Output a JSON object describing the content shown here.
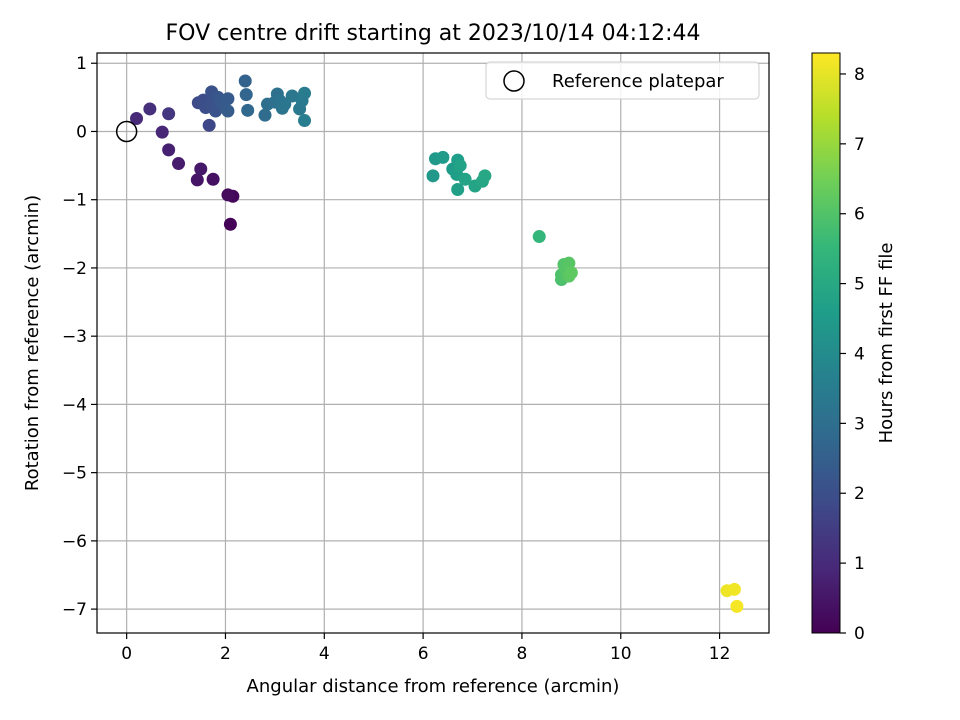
{
  "chart_data": {
    "type": "scatter",
    "title": "FOV centre drift starting at 2023/10/14 04:12:44",
    "xlabel": "Angular distance from reference (arcmin)",
    "ylabel": "Rotation from reference (arcmin)",
    "xlim": [
      -0.6,
      13.0
    ],
    "ylim": [
      -7.35,
      1.15
    ],
    "xticks": [
      "0",
      "2",
      "4",
      "6",
      "8",
      "10",
      "12"
    ],
    "xtick_values": [
      0,
      2,
      4,
      6,
      8,
      10,
      12
    ],
    "yticks": [
      "1",
      "0",
      "−1",
      "−2",
      "−3",
      "−4",
      "−5",
      "−6",
      "−7"
    ],
    "ytick_values": [
      1,
      0,
      -1,
      -2,
      -3,
      -4,
      -5,
      -6,
      -7
    ],
    "grid": true,
    "colormap": "viridis",
    "colormap_stops": [
      "#440154",
      "#482878",
      "#3e4a89",
      "#31688e",
      "#26828e",
      "#1f9e89",
      "#35b779",
      "#6ece58",
      "#b5de2b",
      "#fde725"
    ],
    "colorbar": {
      "label": "Hours from first FF file",
      "range": [
        0,
        8.3
      ],
      "ticks": [
        "0",
        "1",
        "2",
        "3",
        "4",
        "5",
        "6",
        "7",
        "8"
      ],
      "tick_values": [
        0,
        1,
        2,
        3,
        4,
        5,
        6,
        7,
        8
      ]
    },
    "legend": {
      "position": "top-right",
      "label": "Reference platepar"
    },
    "reference": {
      "x": 0,
      "y": 0
    },
    "points": [
      {
        "x": 2.1,
        "y": -1.36,
        "h": 0.05
      },
      {
        "x": 2.15,
        "y": -0.95,
        "h": 0.15
      },
      {
        "x": 2.05,
        "y": -0.93,
        "h": 0.25
      },
      {
        "x": 1.75,
        "y": -0.7,
        "h": 0.35
      },
      {
        "x": 1.43,
        "y": -0.71,
        "h": 0.45
      },
      {
        "x": 1.5,
        "y": -0.55,
        "h": 0.55
      },
      {
        "x": 1.05,
        "y": -0.47,
        "h": 0.65
      },
      {
        "x": 0.85,
        "y": -0.27,
        "h": 0.75
      },
      {
        "x": 0.72,
        "y": -0.01,
        "h": 0.9
      },
      {
        "x": 0.2,
        "y": 0.19,
        "h": 1.0
      },
      {
        "x": 0.47,
        "y": 0.33,
        "h": 1.15
      },
      {
        "x": 0.85,
        "y": 0.26,
        "h": 1.3
      },
      {
        "x": 1.67,
        "y": 0.09,
        "h": 1.8
      },
      {
        "x": 1.45,
        "y": 0.42,
        "h": 1.9
      },
      {
        "x": 1.55,
        "y": 0.46,
        "h": 1.95
      },
      {
        "x": 1.6,
        "y": 0.35,
        "h": 2.0
      },
      {
        "x": 1.7,
        "y": 0.4,
        "h": 2.05
      },
      {
        "x": 1.72,
        "y": 0.58,
        "h": 2.1
      },
      {
        "x": 1.8,
        "y": 0.3,
        "h": 2.15
      },
      {
        "x": 1.85,
        "y": 0.5,
        "h": 2.2
      },
      {
        "x": 1.9,
        "y": 0.45,
        "h": 2.25
      },
      {
        "x": 1.95,
        "y": 0.38,
        "h": 2.3
      },
      {
        "x": 2.05,
        "y": 0.48,
        "h": 2.35
      },
      {
        "x": 2.05,
        "y": 0.3,
        "h": 2.4
      },
      {
        "x": 2.4,
        "y": 0.74,
        "h": 2.6
      },
      {
        "x": 2.42,
        "y": 0.54,
        "h": 2.7
      },
      {
        "x": 2.45,
        "y": 0.31,
        "h": 2.8
      },
      {
        "x": 2.8,
        "y": 0.24,
        "h": 2.9
      },
      {
        "x": 2.85,
        "y": 0.4,
        "h": 3.0
      },
      {
        "x": 3.0,
        "y": 0.43,
        "h": 3.05
      },
      {
        "x": 3.05,
        "y": 0.55,
        "h": 3.1
      },
      {
        "x": 3.1,
        "y": 0.45,
        "h": 3.15
      },
      {
        "x": 3.15,
        "y": 0.34,
        "h": 3.2
      },
      {
        "x": 3.2,
        "y": 0.4,
        "h": 3.25
      },
      {
        "x": 3.35,
        "y": 0.52,
        "h": 3.3
      },
      {
        "x": 3.5,
        "y": 0.33,
        "h": 3.35
      },
      {
        "x": 3.55,
        "y": 0.45,
        "h": 3.4
      },
      {
        "x": 3.6,
        "y": 0.56,
        "h": 3.45
      },
      {
        "x": 3.6,
        "y": 0.16,
        "h": 3.5
      },
      {
        "x": 6.2,
        "y": -0.65,
        "h": 4.4
      },
      {
        "x": 6.25,
        "y": -0.4,
        "h": 4.45
      },
      {
        "x": 6.4,
        "y": -0.38,
        "h": 4.5
      },
      {
        "x": 6.6,
        "y": -0.55,
        "h": 4.55
      },
      {
        "x": 6.7,
        "y": -0.42,
        "h": 4.6
      },
      {
        "x": 6.68,
        "y": -0.63,
        "h": 4.65
      },
      {
        "x": 6.7,
        "y": -0.85,
        "h": 4.7
      },
      {
        "x": 6.75,
        "y": -0.5,
        "h": 4.75
      },
      {
        "x": 6.85,
        "y": -0.7,
        "h": 4.8
      },
      {
        "x": 7.05,
        "y": -0.8,
        "h": 4.85
      },
      {
        "x": 7.2,
        "y": -0.73,
        "h": 4.9
      },
      {
        "x": 7.25,
        "y": -0.65,
        "h": 4.95
      },
      {
        "x": 8.35,
        "y": -1.54,
        "h": 5.5
      },
      {
        "x": 8.8,
        "y": -2.17,
        "h": 5.9
      },
      {
        "x": 8.8,
        "y": -2.1,
        "h": 5.95
      },
      {
        "x": 8.85,
        "y": -1.95,
        "h": 6.0
      },
      {
        "x": 8.9,
        "y": -2.05,
        "h": 6.05
      },
      {
        "x": 8.95,
        "y": -1.93,
        "h": 6.1
      },
      {
        "x": 8.95,
        "y": -2.12,
        "h": 6.15
      },
      {
        "x": 9.0,
        "y": -2.07,
        "h": 6.2
      },
      {
        "x": 12.15,
        "y": -6.73,
        "h": 8.1
      },
      {
        "x": 12.3,
        "y": -6.71,
        "h": 8.15
      },
      {
        "x": 12.35,
        "y": -6.96,
        "h": 8.2
      }
    ]
  }
}
